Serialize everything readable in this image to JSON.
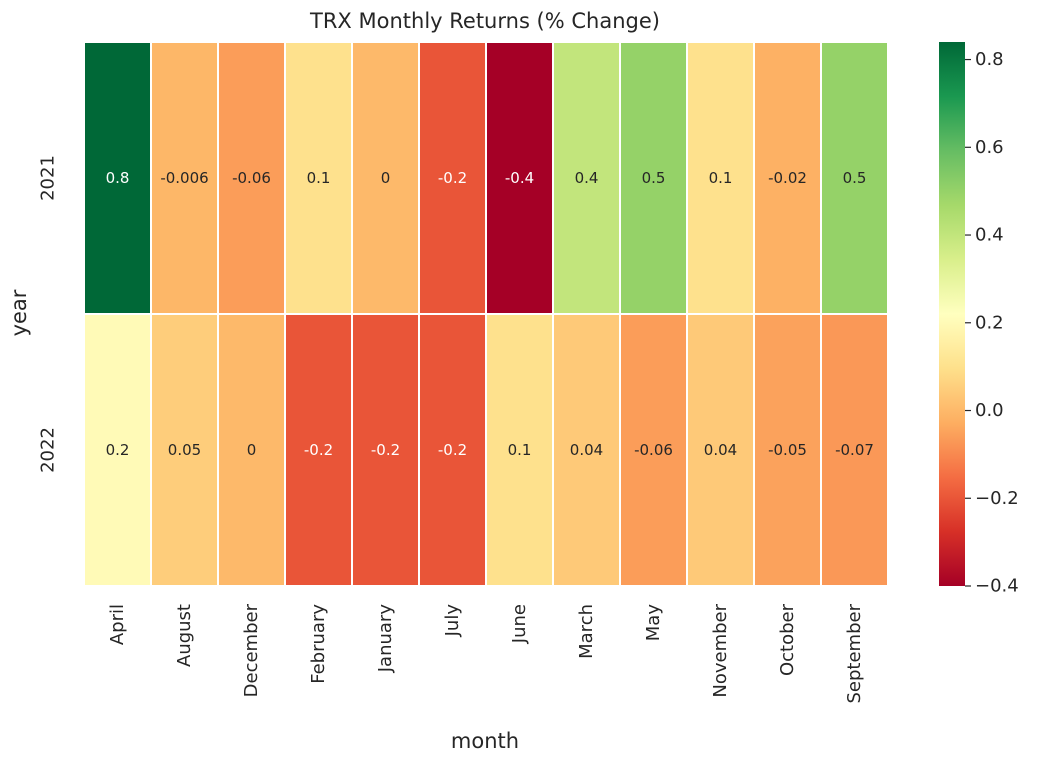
{
  "chart_data": {
    "type": "heatmap",
    "title": "TRX Monthly Returns (% Change)",
    "xlabel": "month",
    "ylabel": "year",
    "x_categories": [
      "April",
      "August",
      "December",
      "February",
      "January",
      "July",
      "June",
      "March",
      "May",
      "November",
      "October",
      "September"
    ],
    "y_categories": [
      "2021",
      "2022"
    ],
    "values": [
      [
        0.84,
        -0.006,
        -0.06,
        0.1,
        0.0,
        -0.2,
        -0.4,
        0.4,
        0.5,
        0.1,
        -0.02,
        0.5
      ],
      [
        0.2,
        0.05,
        0.0,
        -0.2,
        -0.2,
        -0.2,
        0.1,
        0.04,
        -0.06,
        0.04,
        -0.05,
        -0.07
      ]
    ],
    "cell_labels": [
      [
        "0.8",
        "-0.006",
        "-0.06",
        "0.1",
        "0",
        "-0.2",
        "-0.4",
        "0.4",
        "0.5",
        "0.1",
        "-0.02",
        "0.5"
      ],
      [
        "0.2",
        "0.05",
        "0",
        "-0.2",
        "-0.2",
        "-0.2",
        "0.1",
        "0.04",
        "-0.06",
        "0.04",
        "-0.05",
        "-0.07"
      ]
    ],
    "colormap": "RdYlGn",
    "value_range": [
      -0.4,
      0.84
    ],
    "colorbar": {
      "ticks": [
        -0.4,
        -0.2,
        0.0,
        0.2,
        0.4,
        0.6,
        0.8
      ],
      "tick_labels": [
        "−0.4",
        "−0.2",
        "0.0",
        "0.2",
        "0.4",
        "0.6",
        "0.8"
      ]
    },
    "grid": false,
    "colors": {
      "cell_border": "#ffffff",
      "text": "#262626",
      "tick_mark": "#262626"
    }
  }
}
